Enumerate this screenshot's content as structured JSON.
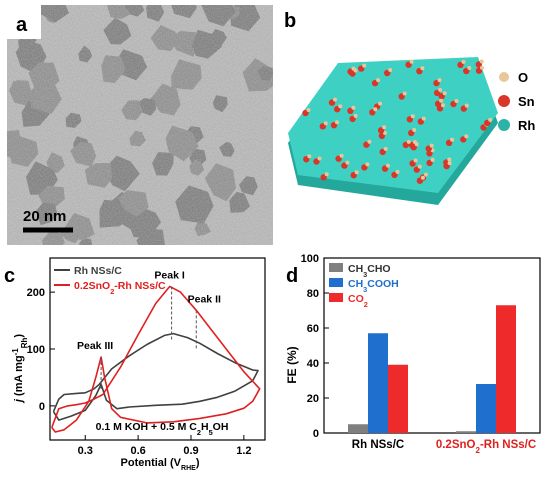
{
  "panels": {
    "a": "a",
    "b": "b",
    "c": "c",
    "d": "d"
  },
  "tem": {
    "scale_bar_label": "20 nm"
  },
  "model": {
    "legend": [
      {
        "label": "O",
        "color": "#e8c79a"
      },
      {
        "label": "Sn",
        "color": "#d9362a"
      },
      {
        "label": "Rh",
        "color": "#2ab3a6"
      }
    ]
  },
  "chart_data": [
    {
      "type": "line",
      "panel": "c",
      "ylabel_parts": {
        "j": "j",
        "rest": " (mA mg",
        "sup": "-1",
        "sub": "Rh",
        "close": ")"
      },
      "xlabel_parts": {
        "main": "Potential (V",
        "sub": "RHE",
        "close": ")"
      },
      "xlim": [
        0.1,
        1.32
      ],
      "ylim": [
        -60,
        260
      ],
      "xticks": [
        0.3,
        0.6,
        0.9,
        1.2
      ],
      "yticks": [
        0,
        100,
        200
      ],
      "legend_position": "top-left",
      "annotation": "0.1 M KOH + 0.5 M C2H5OH",
      "peak_labels": [
        {
          "text": "Peak I",
          "x": 0.79,
          "y": 210
        },
        {
          "text": "Peak II",
          "x": 0.93,
          "y": 168
        },
        {
          "text": "Peak III",
          "x": 0.39,
          "y": 86
        }
      ],
      "series": [
        {
          "name": "Rh NSs/C",
          "color": "#404040",
          "forward": [
            [
              0.12,
              -10
            ],
            [
              0.15,
              12
            ],
            [
              0.18,
              20
            ],
            [
              0.25,
              22
            ],
            [
              0.3,
              23
            ],
            [
              0.35,
              30
            ],
            [
              0.38,
              38
            ],
            [
              0.45,
              65
            ],
            [
              0.55,
              88
            ],
            [
              0.65,
              108
            ],
            [
              0.75,
              124
            ],
            [
              0.8,
              127
            ],
            [
              0.88,
              120
            ],
            [
              0.95,
              110
            ],
            [
              1.05,
              92
            ],
            [
              1.15,
              76
            ],
            [
              1.25,
              63
            ],
            [
              1.28,
              62
            ]
          ],
          "reverse": [
            [
              1.28,
              62
            ],
            [
              1.25,
              44
            ],
            [
              1.15,
              26
            ],
            [
              1.05,
              15
            ],
            [
              0.95,
              8
            ],
            [
              0.85,
              3
            ],
            [
              0.7,
              1
            ],
            [
              0.55,
              -2
            ],
            [
              0.48,
              -5
            ],
            [
              0.42,
              10
            ],
            [
              0.39,
              38
            ],
            [
              0.36,
              18
            ],
            [
              0.3,
              -8
            ],
            [
              0.22,
              -18
            ],
            [
              0.15,
              -25
            ],
            [
              0.12,
              -10
            ]
          ]
        },
        {
          "name": "0.2SnO2-Rh NSs/C",
          "color": "#e02020",
          "forward": [
            [
              0.11,
              -38
            ],
            [
              0.15,
              -5
            ],
            [
              0.2,
              0
            ],
            [
              0.25,
              2
            ],
            [
              0.3,
              5
            ],
            [
              0.35,
              12
            ],
            [
              0.4,
              20
            ],
            [
              0.5,
              68
            ],
            [
              0.6,
              125
            ],
            [
              0.7,
              180
            ],
            [
              0.78,
              210
            ],
            [
              0.84,
              200
            ],
            [
              0.93,
              168
            ],
            [
              1.0,
              140
            ],
            [
              1.1,
              100
            ],
            [
              1.2,
              60
            ],
            [
              1.29,
              30
            ]
          ],
          "reverse": [
            [
              1.29,
              30
            ],
            [
              1.25,
              8
            ],
            [
              1.2,
              -4
            ],
            [
              1.1,
              -14
            ],
            [
              0.95,
              -22
            ],
            [
              0.8,
              -28
            ],
            [
              0.65,
              -30
            ],
            [
              0.5,
              -20
            ],
            [
              0.45,
              -5
            ],
            [
              0.41,
              50
            ],
            [
              0.39,
              86
            ],
            [
              0.36,
              50
            ],
            [
              0.32,
              8
            ],
            [
              0.25,
              -25
            ],
            [
              0.18,
              -42
            ],
            [
              0.13,
              -46
            ],
            [
              0.11,
              -38
            ]
          ]
        }
      ]
    },
    {
      "type": "bar",
      "panel": "d",
      "ylabel": "FE (%)",
      "ylim": [
        0,
        100
      ],
      "yticks": [
        0,
        20,
        40,
        60,
        80,
        100
      ],
      "categories": [
        "Rh NSs/C",
        "0.2SnO2-Rh NSs/C"
      ],
      "legend_position": "top-left",
      "series": [
        {
          "name": "CH3CHO",
          "color": "#7f7f7f",
          "values": [
            5,
            1
          ]
        },
        {
          "name": "CH3COOH",
          "color": "#1f6fcf",
          "values": [
            57,
            28
          ]
        },
        {
          "name": "CO2",
          "color": "#ee2a2a",
          "values": [
            39,
            73
          ]
        }
      ]
    }
  ]
}
